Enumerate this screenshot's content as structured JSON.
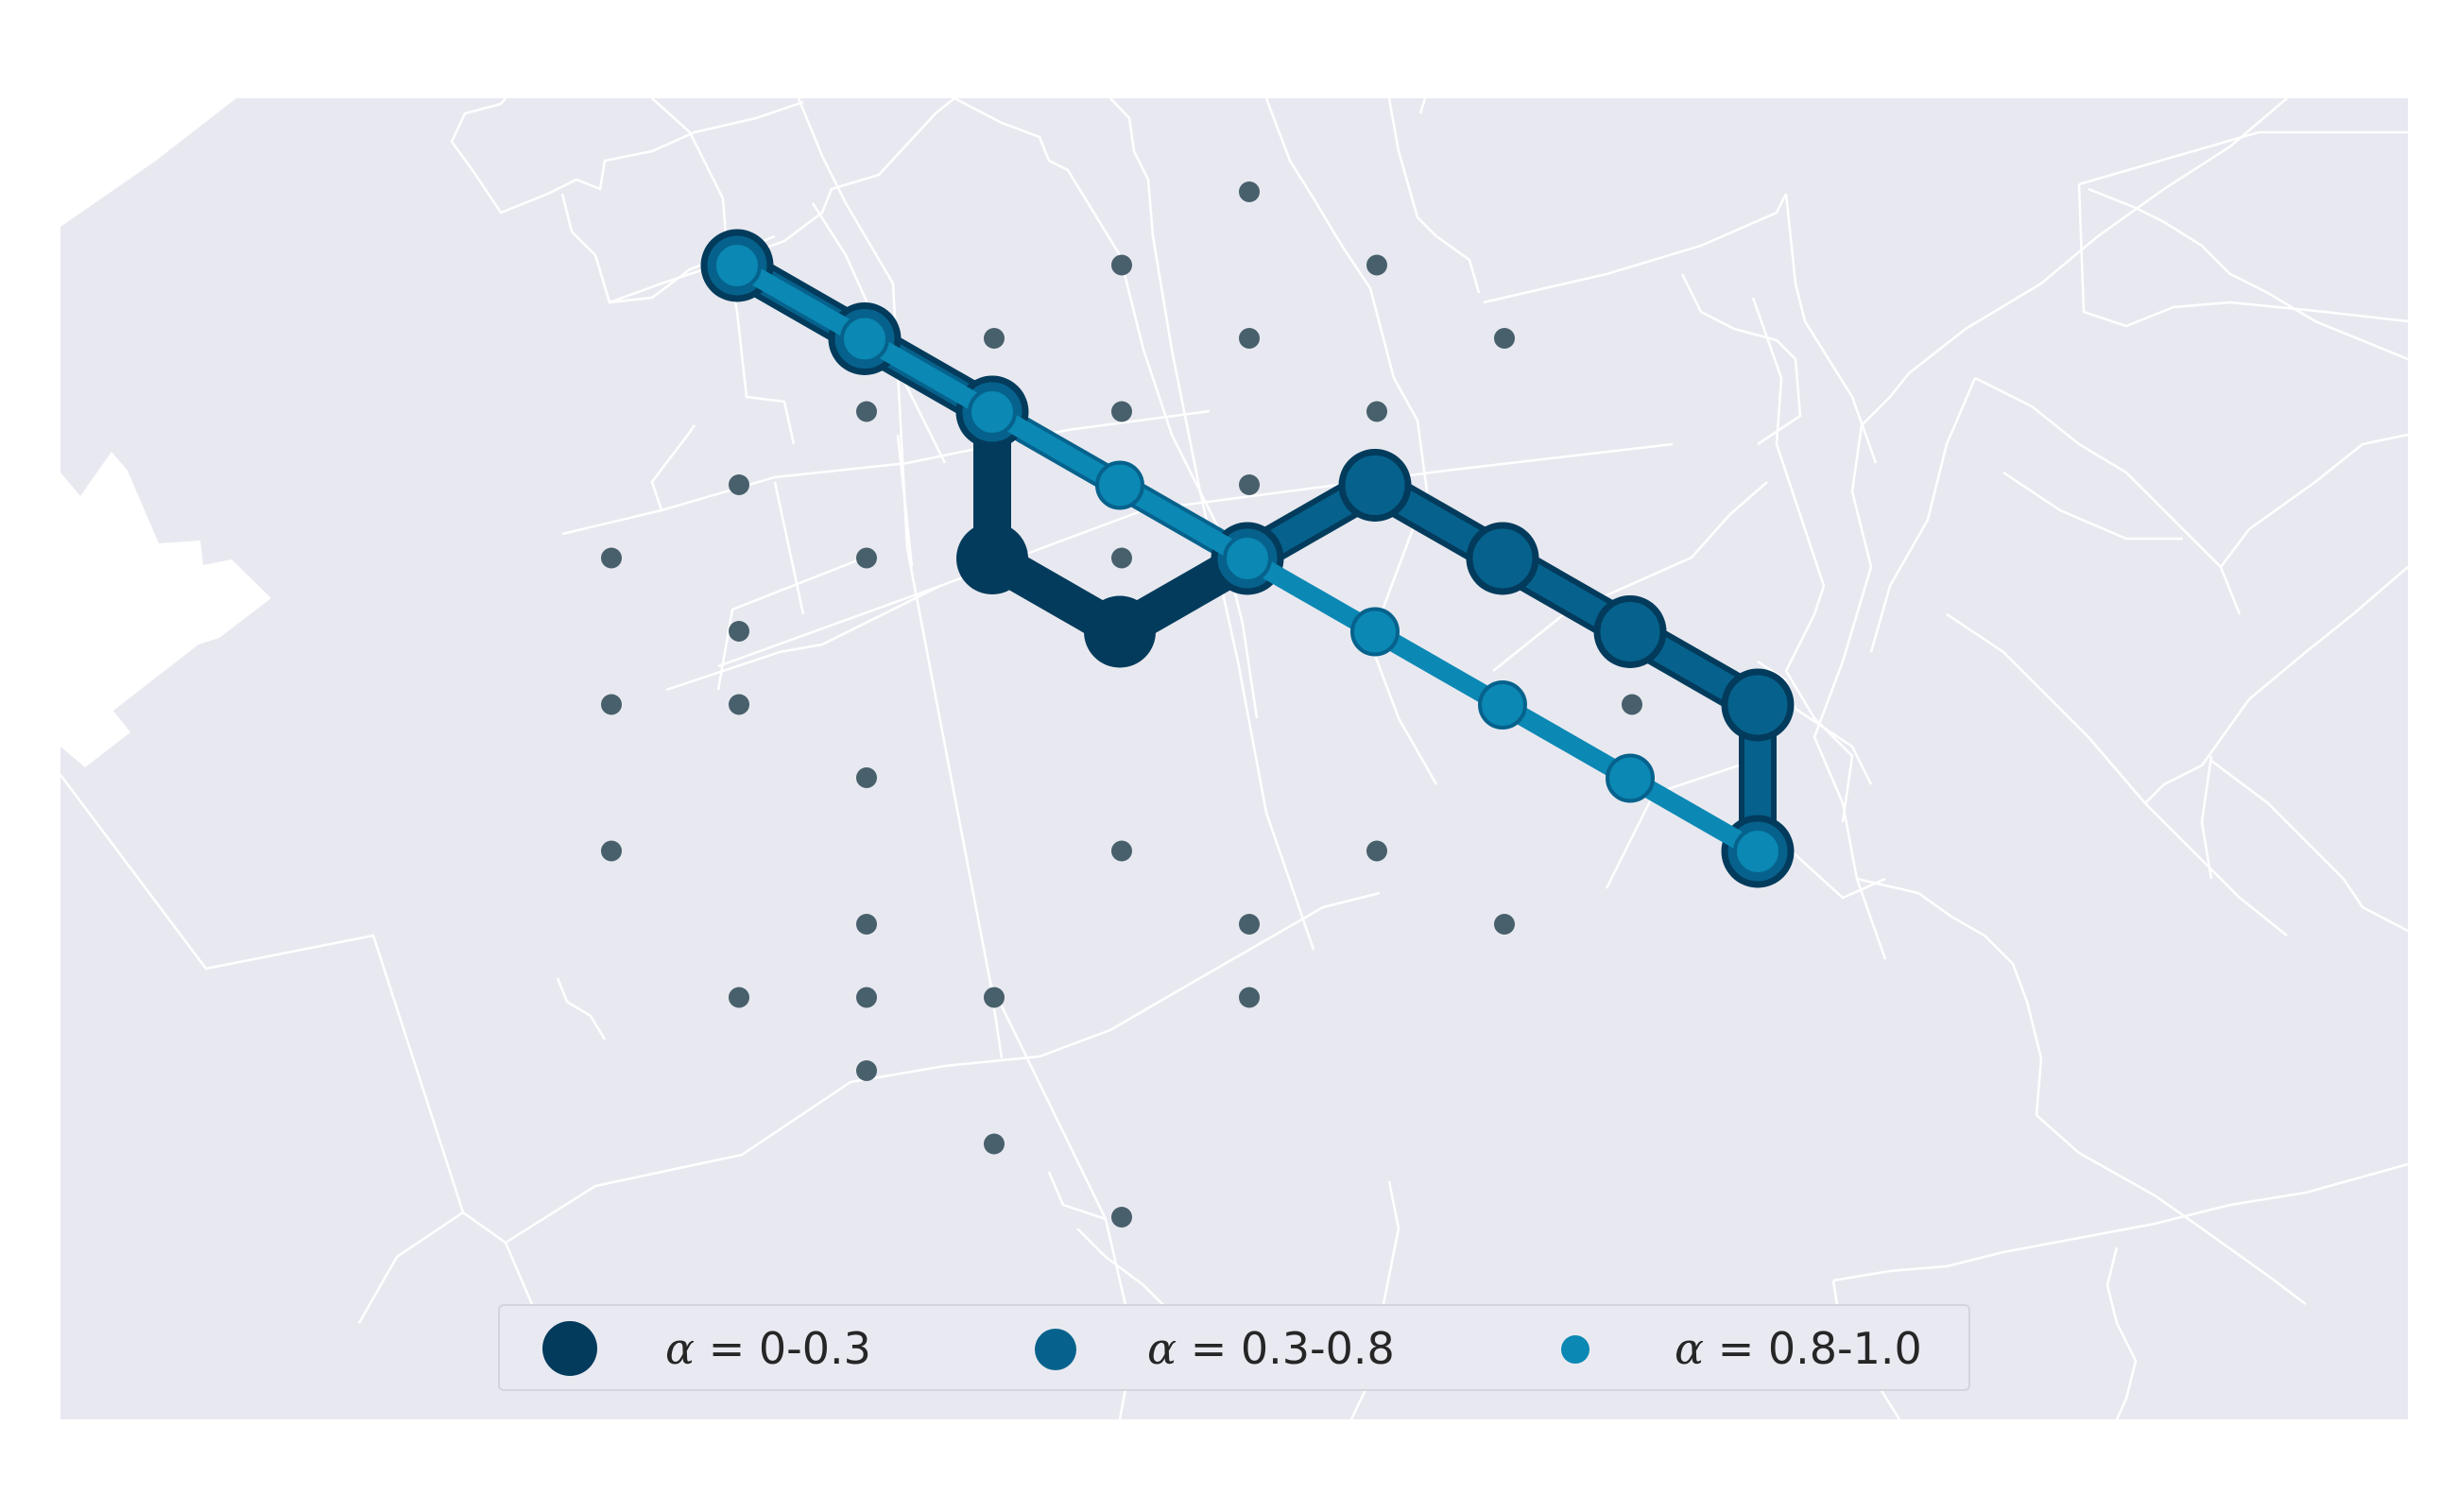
{
  "map": {
    "colors": {
      "background": "#e8e9f0",
      "boundaries": "#ffffff",
      "grid_points": "#48606c"
    },
    "legend": {
      "placement": "bottom-center",
      "items": [
        {
          "symbol": "α",
          "equals": "=",
          "range": "0-0.3",
          "color": "#033b5c",
          "edge": "#033b5c"
        },
        {
          "symbol": "α",
          "equals": "=",
          "range": "0.3-0.8",
          "color": "#06628c",
          "edge": "#033b5c"
        },
        {
          "symbol": "α",
          "equals": "=",
          "range": "0.8-1.0",
          "color": "#0b88b4",
          "edge": "#06628c"
        }
      ]
    }
  }
}
